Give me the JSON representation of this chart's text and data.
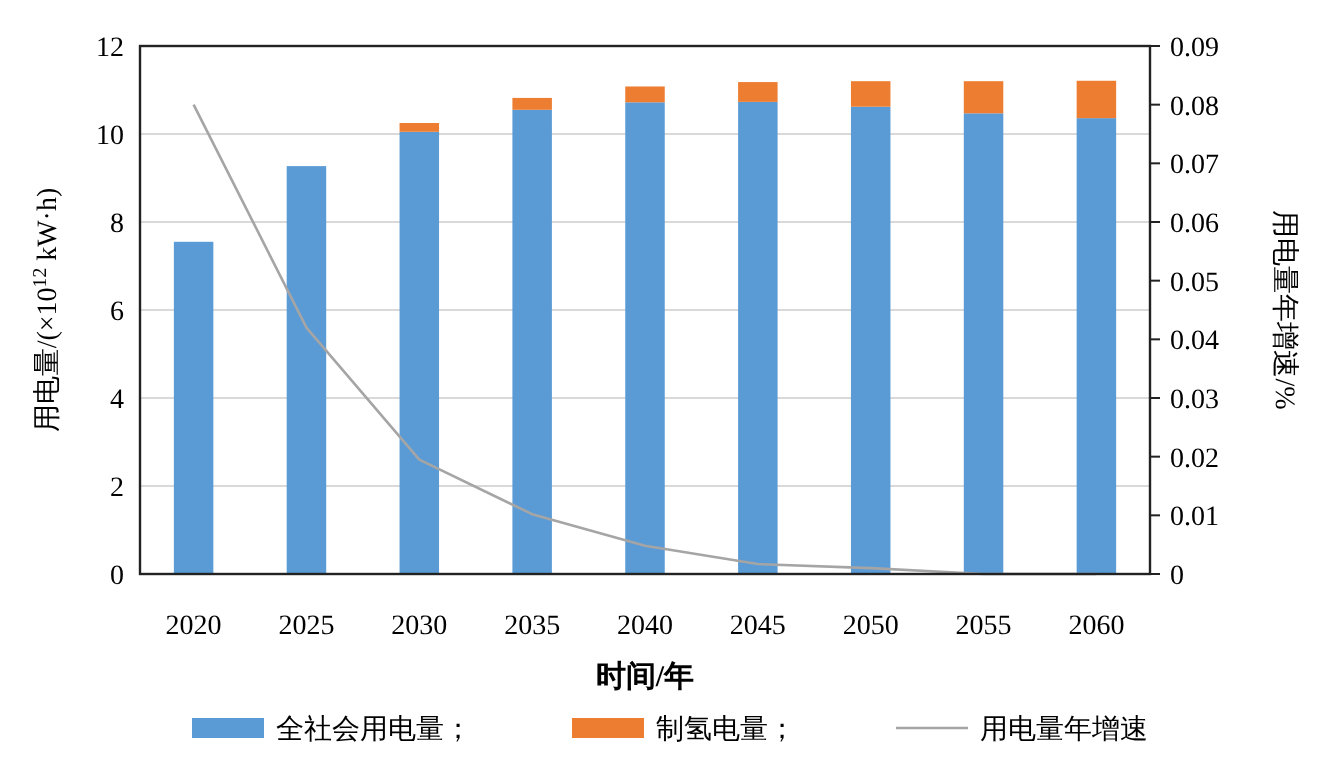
{
  "chart_data": {
    "type": "bar",
    "stacked": true,
    "xlabel": "时间/年",
    "ylabel": "用电量/(×10$^{12}$ kW·h)",
    "y2label": "用电量年增速/%",
    "categories": [
      "2020",
      "2025",
      "2030",
      "2035",
      "2040",
      "2045",
      "2050",
      "2055",
      "2060"
    ],
    "series": [
      {
        "name": "全社会用电量；",
        "color": "#5b9bd5",
        "values": [
          7.55,
          9.27,
          10.05,
          10.55,
          10.72,
          10.73,
          10.62,
          10.47,
          10.36
        ]
      },
      {
        "name": "制氢电量；",
        "color": "#ed7d31",
        "values": [
          0,
          0,
          0.2,
          0.27,
          0.36,
          0.45,
          0.58,
          0.73,
          0.85
        ]
      },
      {
        "name": "用电量年增速",
        "type": "line",
        "axis": "y2",
        "color": "#a5a5a5",
        "values": [
          0.08,
          0.042,
          0.0195,
          0.0102,
          0.0048,
          0.0017,
          0.001,
          0,
          0
        ]
      }
    ],
    "ylim": [
      0,
      12
    ],
    "yticks": [
      0,
      2,
      4,
      6,
      8,
      10,
      12
    ],
    "y2lim": [
      0,
      0.09
    ],
    "y2ticks": [
      0,
      0.01,
      0.02,
      0.03,
      0.04,
      0.05,
      0.06,
      0.07,
      0.08,
      0.09
    ],
    "grid": "y",
    "legend": "bottom"
  }
}
